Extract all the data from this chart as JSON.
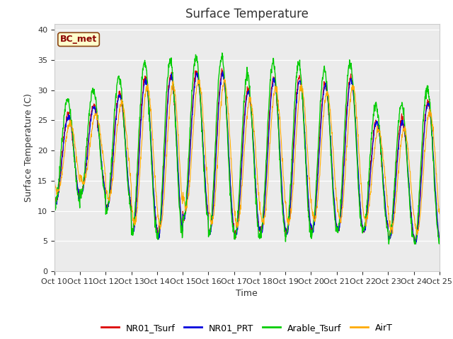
{
  "title": "Surface Temperature",
  "ylabel": "Surface Temperature (C)",
  "xlabel": "Time",
  "annotation": "BC_met",
  "ylim": [
    0,
    41
  ],
  "yticks": [
    0,
    5,
    10,
    15,
    20,
    25,
    30,
    35,
    40
  ],
  "line_colors": {
    "NR01_Tsurf": "#dd0000",
    "NR01_PRT": "#0000dd",
    "Arable_Tsurf": "#00cc00",
    "AirT": "#ffaa00"
  },
  "line_widths": {
    "NR01_Tsurf": 0.8,
    "NR01_PRT": 0.8,
    "Arable_Tsurf": 1.0,
    "AirT": 0.8
  },
  "xtick_labels": [
    "Oct 10",
    "Oct 11",
    "Oct 12",
    "Oct 13",
    "Oct 14",
    "Oct 15",
    "Oct 16",
    "Oct 17",
    "Oct 18",
    "Oct 19",
    "Oct 20",
    "Oct 21",
    "Oct 22",
    "Oct 23",
    "Oct 24",
    "Oct 25"
  ],
  "background_color": "#ebebeb",
  "figure_color": "#ffffff",
  "title_fontsize": 12,
  "axis_label_fontsize": 9,
  "legend_fontsize": 9,
  "tick_fontsize": 8,
  "n_days": 15,
  "pts_per_day": 96,
  "daily_min_base": [
    11.5,
    13,
    10.5,
    6.5,
    6,
    9,
    6.5,
    6,
    6.5,
    6.5,
    7,
    7,
    7,
    5.5,
    5
  ],
  "daily_max_base": [
    26,
    27.5,
    29.5,
    32,
    32.5,
    33,
    33,
    30,
    32,
    32,
    31,
    32,
    25,
    25,
    28
  ]
}
